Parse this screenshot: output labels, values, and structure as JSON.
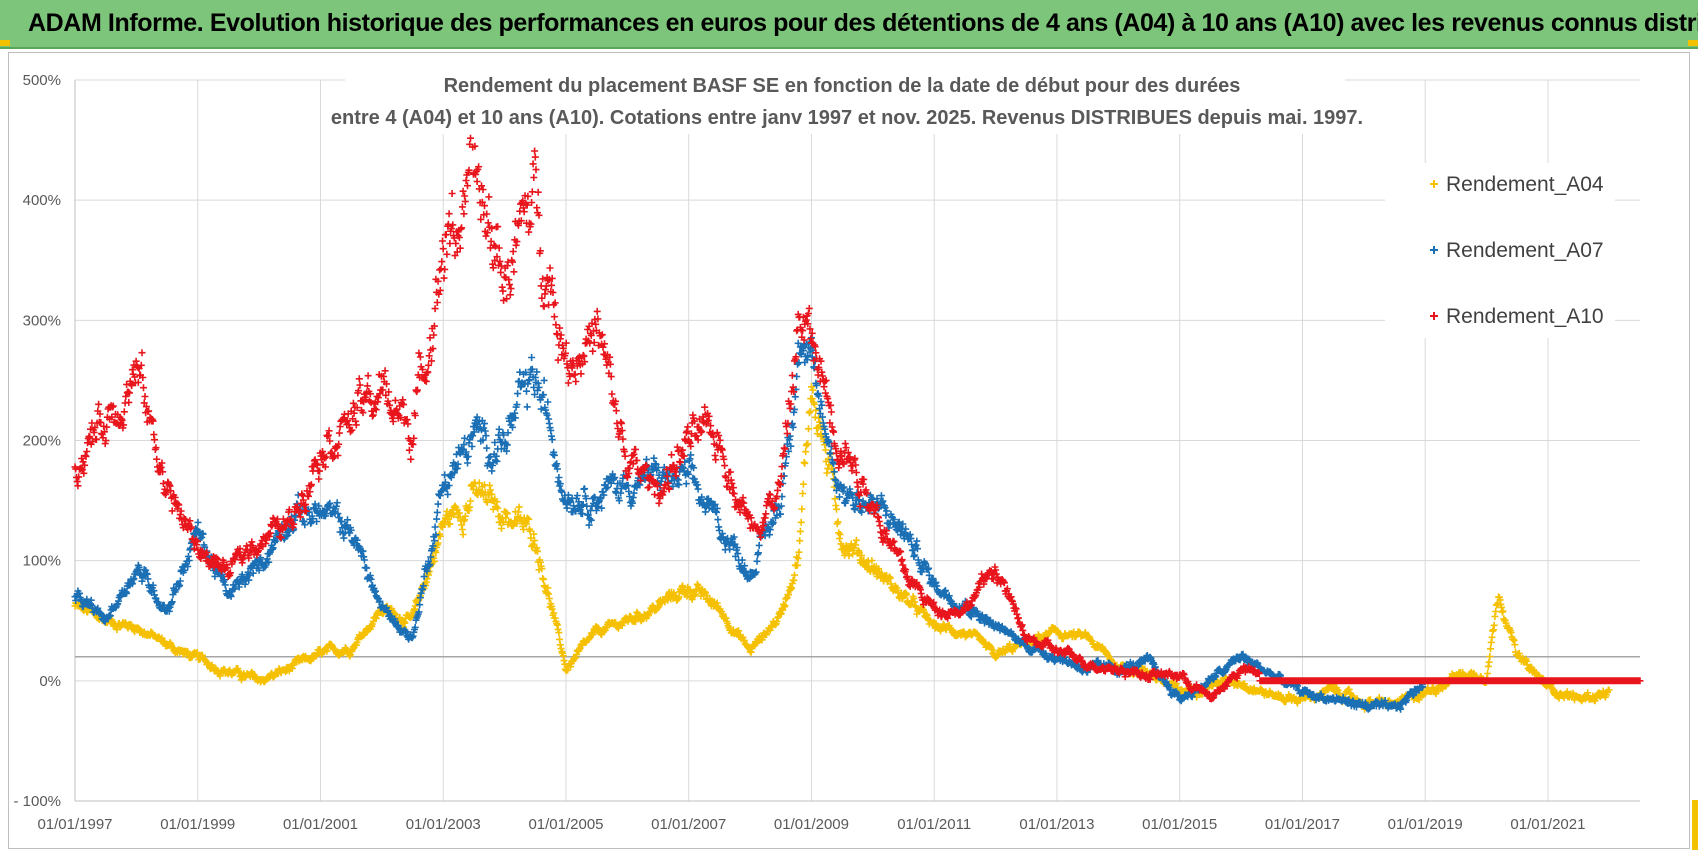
{
  "banner": {
    "title": "ADAM Informe. Evolution historique des performances en euros pour des détentions de 4 ans (A04) à 10 ans (A10) avec les revenus connus distribués"
  },
  "chart_data": {
    "type": "scatter",
    "title_line1": "Rendement du placement BASF SE en fonction de la date de début pour des durées",
    "title_line2": "entre 4 (A04) et 10 ans (A10). Cotations entre janv 1997 et nov. 2025. Revenus DISTRIBUES depuis mai. 1997.",
    "xlabel": "",
    "ylabel": "",
    "xlim": [
      1997.0,
      2022.5
    ],
    "ylim": [
      -100,
      500
    ],
    "y_ticks": [
      {
        "value": -100,
        "label": "- 100%"
      },
      {
        "value": 0,
        "label": "0%"
      },
      {
        "value": 100,
        "label": "100%"
      },
      {
        "value": 200,
        "label": "200%"
      },
      {
        "value": 300,
        "label": "300%"
      },
      {
        "value": 400,
        "label": "400%"
      },
      {
        "value": 500,
        "label": "500%"
      }
    ],
    "x_ticks": [
      {
        "value": 1997,
        "label": "01/01/1997"
      },
      {
        "value": 1999,
        "label": "01/01/1999"
      },
      {
        "value": 2001,
        "label": "01/01/2001"
      },
      {
        "value": 2003,
        "label": "01/01/2003"
      },
      {
        "value": 2005,
        "label": "01/01/2005"
      },
      {
        "value": 2007,
        "label": "01/01/2007"
      },
      {
        "value": 2009,
        "label": "01/01/2009"
      },
      {
        "value": 2011,
        "label": "01/01/2011"
      },
      {
        "value": 2013,
        "label": "01/01/2013"
      },
      {
        "value": 2015,
        "label": "01/01/2015"
      },
      {
        "value": 2017,
        "label": "01/01/2017"
      },
      {
        "value": 2019,
        "label": "01/01/2019"
      },
      {
        "value": 2021,
        "label": "01/01/2021"
      }
    ],
    "reference_line": 20,
    "legend_position": "top-right",
    "series": [
      {
        "name": "Rendement_A04",
        "color": "#f5c000",
        "x": [
          1997.0,
          1997.5,
          1998.0,
          1998.5,
          1999.0,
          1999.5,
          2000.0,
          2000.5,
          2001.0,
          2001.5,
          2002.0,
          2002.5,
          2003.0,
          2003.5,
          2004.0,
          2004.5,
          2005.0,
          2005.5,
          2006.0,
          2006.5,
          2007.0,
          2007.5,
          2008.0,
          2008.5,
          2008.8,
          2009.0,
          2009.5,
          2010.0,
          2010.5,
          2011.0,
          2011.5,
          2012.0,
          2012.5,
          2013.0,
          2013.5,
          2014.0,
          2014.5,
          2015.0,
          2015.5,
          2016.0,
          2016.5,
          2017.0,
          2017.5,
          2018.0,
          2018.5,
          2019.0,
          2019.5,
          2020.0,
          2020.2,
          2020.5,
          2021.0,
          2021.5,
          2022.0
        ],
        "values": [
          62,
          50,
          45,
          30,
          18,
          8,
          0,
          10,
          22,
          28,
          60,
          50,
          130,
          155,
          140,
          120,
          10,
          40,
          50,
          62,
          78,
          60,
          25,
          55,
          110,
          250,
          120,
          95,
          70,
          45,
          40,
          20,
          32,
          40,
          35,
          12,
          8,
          -10,
          -2,
          0,
          -12,
          -15,
          -8,
          -18,
          -20,
          -10,
          5,
          5,
          75,
          20,
          -5,
          -15,
          -10
        ]
      },
      {
        "name": "Rendement_A07",
        "color": "#1a6fb5",
        "x": [
          1997.0,
          1997.5,
          1998.0,
          1998.5,
          1999.0,
          1999.5,
          2000.0,
          2000.5,
          2001.0,
          2001.5,
          2002.0,
          2002.5,
          2003.0,
          2003.5,
          2004.0,
          2004.5,
          2005.0,
          2005.5,
          2006.0,
          2006.5,
          2007.0,
          2007.5,
          2008.0,
          2008.5,
          2008.8,
          2009.0,
          2009.5,
          2010.0,
          2010.5,
          2011.0,
          2011.5,
          2012.0,
          2012.5,
          2013.0,
          2013.5,
          2014.0,
          2014.5,
          2015.0,
          2015.5,
          2016.0,
          2016.5,
          2017.0,
          2017.5,
          2018.0,
          2018.5,
          2019.0
        ],
        "values": [
          70,
          50,
          95,
          60,
          125,
          70,
          95,
          140,
          140,
          125,
          60,
          35,
          165,
          200,
          200,
          250,
          160,
          155,
          165,
          170,
          165,
          130,
          90,
          150,
          290,
          250,
          160,
          145,
          125,
          80,
          65,
          45,
          30,
          20,
          10,
          10,
          15,
          -15,
          0,
          20,
          5,
          -10,
          -15,
          -20,
          -25,
          0
        ]
      },
      {
        "name": "Rendement_A10",
        "color": "#e8161c",
        "x": [
          1997.0,
          1997.5,
          1998.0,
          1998.5,
          1999.0,
          1999.5,
          2000.0,
          2000.5,
          2001.0,
          2001.5,
          2002.0,
          2002.5,
          2003.0,
          2003.5,
          2004.0,
          2004.5,
          2005.0,
          2005.5,
          2006.0,
          2006.5,
          2007.0,
          2007.5,
          2008.0,
          2008.5,
          2008.8,
          2009.0,
          2009.5,
          2010.0,
          2010.5,
          2011.0,
          2011.5,
          2012.0,
          2012.5,
          2013.0,
          2013.5,
          2014.0,
          2014.5,
          2015.0,
          2015.5,
          2016.0,
          2016.5,
          2017.0,
          2018.0,
          2019.0,
          2020.0,
          2021.0,
          2022.5
        ],
        "values": [
          180,
          220,
          260,
          160,
          110,
          90,
          120,
          130,
          200,
          220,
          240,
          210,
          360,
          410,
          340,
          400,
          270,
          290,
          180,
          160,
          200,
          200,
          130,
          160,
          300,
          280,
          200,
          150,
          90,
          60,
          60,
          95,
          35,
          25,
          15,
          10,
          5,
          5,
          -15,
          10,
          0,
          0,
          0,
          0,
          0,
          0,
          0
        ]
      }
    ]
  }
}
